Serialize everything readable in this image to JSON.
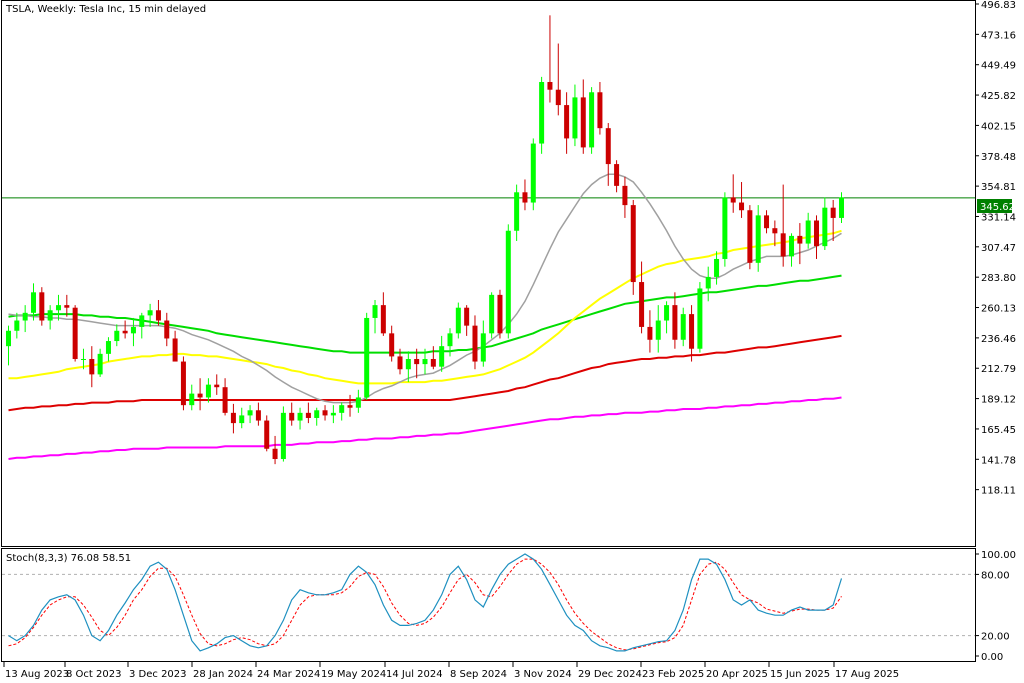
{
  "chart_header": {
    "title": "TSLA, Weekly:  Tesla Inc, 15 min delayed"
  },
  "stoch_header": {
    "label": "Stoch(8,3,3) 76.08 58.51"
  },
  "current_price": "345.62",
  "colors": {
    "bull": "#00ff00",
    "bear": "#cc0000",
    "ma_fast": "#a0a0a0",
    "ma_yellow": "#ffff00",
    "ma_green": "#00dd00",
    "ma_red": "#dd0000",
    "ma_magenta": "#ff00ff",
    "price_line": "#008000",
    "stoch_main": "#1e90c0",
    "stoch_signal": "#ff0000"
  },
  "chart_data": {
    "type": "candlestick",
    "title": "TSLA, Weekly:  Tesla Inc, 15 min delayed",
    "y_ticks": [
      "496.83",
      "473.16",
      "449.49",
      "425.82",
      "402.15",
      "378.48",
      "354.81",
      "331.14",
      "307.47",
      "283.80",
      "260.13",
      "236.46",
      "212.79",
      "189.12",
      "165.45",
      "141.78",
      "118.11"
    ],
    "ylim": [
      94.44,
      496.83
    ],
    "x_labels": [
      "13 Aug 2023",
      "8 Oct 2023",
      "3 Dec 2023",
      "28 Jan 2024",
      "24 Mar 2024",
      "19 May 2024",
      "14 Jul 2024",
      "8 Sep 2024",
      "3 Nov 2024",
      "29 Dec 2024",
      "23 Feb 2025",
      "20 Apr 2025",
      "15 Jun 2025",
      "17 Aug 2025"
    ],
    "horizontal_line": 345.62,
    "candles": [
      {
        "o": 230,
        "h": 246,
        "l": 215,
        "c": 242
      },
      {
        "o": 242,
        "h": 256,
        "l": 236,
        "c": 250
      },
      {
        "o": 250,
        "h": 262,
        "l": 241,
        "c": 256
      },
      {
        "o": 256,
        "h": 279,
        "l": 250,
        "c": 272
      },
      {
        "o": 272,
        "h": 276,
        "l": 246,
        "c": 250
      },
      {
        "o": 250,
        "h": 262,
        "l": 243,
        "c": 258
      },
      {
        "o": 258,
        "h": 270,
        "l": 250,
        "c": 262
      },
      {
        "o": 262,
        "h": 270,
        "l": 253,
        "c": 260
      },
      {
        "o": 260,
        "h": 262,
        "l": 218,
        "c": 220
      },
      {
        "o": 220,
        "h": 228,
        "l": 212,
        "c": 220
      },
      {
        "o": 220,
        "h": 230,
        "l": 198,
        "c": 208
      },
      {
        "o": 208,
        "h": 228,
        "l": 206,
        "c": 224
      },
      {
        "o": 224,
        "h": 237,
        "l": 218,
        "c": 234
      },
      {
        "o": 234,
        "h": 247,
        "l": 230,
        "c": 242
      },
      {
        "o": 242,
        "h": 250,
        "l": 236,
        "c": 240
      },
      {
        "o": 240,
        "h": 252,
        "l": 230,
        "c": 245
      },
      {
        "o": 245,
        "h": 256,
        "l": 236,
        "c": 254
      },
      {
        "o": 254,
        "h": 263,
        "l": 245,
        "c": 258
      },
      {
        "o": 258,
        "h": 266,
        "l": 246,
        "c": 250
      },
      {
        "o": 250,
        "h": 256,
        "l": 230,
        "c": 236
      },
      {
        "o": 236,
        "h": 242,
        "l": 222,
        "c": 218
      },
      {
        "o": 218,
        "h": 222,
        "l": 180,
        "c": 184
      },
      {
        "o": 184,
        "h": 200,
        "l": 180,
        "c": 193
      },
      {
        "o": 193,
        "h": 205,
        "l": 180,
        "c": 190
      },
      {
        "o": 190,
        "h": 205,
        "l": 186,
        "c": 200
      },
      {
        "o": 200,
        "h": 208,
        "l": 192,
        "c": 198
      },
      {
        "o": 198,
        "h": 205,
        "l": 176,
        "c": 178
      },
      {
        "o": 178,
        "h": 185,
        "l": 162,
        "c": 170
      },
      {
        "o": 170,
        "h": 182,
        "l": 166,
        "c": 176
      },
      {
        "o": 176,
        "h": 184,
        "l": 170,
        "c": 180
      },
      {
        "o": 180,
        "h": 186,
        "l": 168,
        "c": 172
      },
      {
        "o": 172,
        "h": 176,
        "l": 148,
        "c": 150
      },
      {
        "o": 150,
        "h": 160,
        "l": 138,
        "c": 142
      },
      {
        "o": 142,
        "h": 183,
        "l": 140,
        "c": 178
      },
      {
        "o": 178,
        "h": 186,
        "l": 168,
        "c": 172
      },
      {
        "o": 172,
        "h": 182,
        "l": 165,
        "c": 178
      },
      {
        "o": 178,
        "h": 186,
        "l": 170,
        "c": 174
      },
      {
        "o": 174,
        "h": 182,
        "l": 168,
        "c": 180
      },
      {
        "o": 180,
        "h": 184,
        "l": 172,
        "c": 176
      },
      {
        "o": 176,
        "h": 184,
        "l": 170,
        "c": 178
      },
      {
        "o": 178,
        "h": 186,
        "l": 172,
        "c": 184
      },
      {
        "o": 184,
        "h": 192,
        "l": 175,
        "c": 182
      },
      {
        "o": 182,
        "h": 196,
        "l": 178,
        "c": 190
      },
      {
        "o": 190,
        "h": 256,
        "l": 188,
        "c": 252
      },
      {
        "o": 252,
        "h": 266,
        "l": 240,
        "c": 262
      },
      {
        "o": 262,
        "h": 272,
        "l": 238,
        "c": 240
      },
      {
        "o": 240,
        "h": 246,
        "l": 218,
        "c": 222
      },
      {
        "o": 222,
        "h": 228,
        "l": 208,
        "c": 212
      },
      {
        "o": 212,
        "h": 226,
        "l": 202,
        "c": 220
      },
      {
        "o": 220,
        "h": 228,
        "l": 205,
        "c": 216
      },
      {
        "o": 216,
        "h": 228,
        "l": 208,
        "c": 220
      },
      {
        "o": 220,
        "h": 230,
        "l": 212,
        "c": 214
      },
      {
        "o": 214,
        "h": 238,
        "l": 210,
        "c": 230
      },
      {
        "o": 230,
        "h": 244,
        "l": 222,
        "c": 240
      },
      {
        "o": 240,
        "h": 264,
        "l": 236,
        "c": 260
      },
      {
        "o": 260,
        "h": 262,
        "l": 238,
        "c": 246
      },
      {
        "o": 246,
        "h": 254,
        "l": 212,
        "c": 218
      },
      {
        "o": 218,
        "h": 250,
        "l": 214,
        "c": 240
      },
      {
        "o": 240,
        "h": 272,
        "l": 236,
        "c": 270
      },
      {
        "o": 270,
        "h": 274,
        "l": 236,
        "c": 240
      },
      {
        "o": 240,
        "h": 325,
        "l": 236,
        "c": 320
      },
      {
        "o": 320,
        "h": 356,
        "l": 312,
        "c": 350
      },
      {
        "o": 350,
        "h": 360,
        "l": 336,
        "c": 342
      },
      {
        "o": 342,
        "h": 392,
        "l": 336,
        "c": 388
      },
      {
        "o": 388,
        "h": 440,
        "l": 380,
        "c": 436
      },
      {
        "o": 436,
        "h": 488,
        "l": 420,
        "c": 430
      },
      {
        "o": 430,
        "h": 466,
        "l": 410,
        "c": 418
      },
      {
        "o": 418,
        "h": 428,
        "l": 380,
        "c": 392
      },
      {
        "o": 392,
        "h": 434,
        "l": 386,
        "c": 424
      },
      {
        "o": 424,
        "h": 438,
        "l": 380,
        "c": 385
      },
      {
        "o": 385,
        "h": 432,
        "l": 380,
        "c": 428
      },
      {
        "o": 428,
        "h": 436,
        "l": 395,
        "c": 400
      },
      {
        "o": 400,
        "h": 404,
        "l": 355,
        "c": 372
      },
      {
        "o": 372,
        "h": 375,
        "l": 350,
        "c": 355
      },
      {
        "o": 355,
        "h": 362,
        "l": 330,
        "c": 340
      },
      {
        "o": 340,
        "h": 344,
        "l": 270,
        "c": 280
      },
      {
        "o": 280,
        "h": 296,
        "l": 240,
        "c": 245
      },
      {
        "o": 245,
        "h": 258,
        "l": 225,
        "c": 235
      },
      {
        "o": 235,
        "h": 262,
        "l": 225,
        "c": 250
      },
      {
        "o": 250,
        "h": 265,
        "l": 240,
        "c": 262
      },
      {
        "o": 262,
        "h": 272,
        "l": 228,
        "c": 235
      },
      {
        "o": 235,
        "h": 260,
        "l": 230,
        "c": 255
      },
      {
        "o": 255,
        "h": 262,
        "l": 218,
        "c": 228
      },
      {
        "o": 228,
        "h": 280,
        "l": 225,
        "c": 275
      },
      {
        "o": 275,
        "h": 292,
        "l": 265,
        "c": 284
      },
      {
        "o": 284,
        "h": 304,
        "l": 278,
        "c": 298
      },
      {
        "o": 298,
        "h": 350,
        "l": 292,
        "c": 346
      },
      {
        "o": 346,
        "h": 364,
        "l": 334,
        "c": 342
      },
      {
        "o": 342,
        "h": 358,
        "l": 330,
        "c": 336
      },
      {
        "o": 336,
        "h": 340,
        "l": 290,
        "c": 295
      },
      {
        "o": 295,
        "h": 340,
        "l": 288,
        "c": 332
      },
      {
        "o": 332,
        "h": 336,
        "l": 318,
        "c": 322
      },
      {
        "o": 322,
        "h": 328,
        "l": 308,
        "c": 318
      },
      {
        "o": 318,
        "h": 356,
        "l": 292,
        "c": 300
      },
      {
        "o": 300,
        "h": 318,
        "l": 292,
        "c": 316
      },
      {
        "o": 316,
        "h": 326,
        "l": 294,
        "c": 310
      },
      {
        "o": 310,
        "h": 334,
        "l": 306,
        "c": 328
      },
      {
        "o": 328,
        "h": 332,
        "l": 298,
        "c": 308
      },
      {
        "o": 308,
        "h": 346,
        "l": 305,
        "c": 338
      },
      {
        "o": 338,
        "h": 344,
        "l": 312,
        "c": 330
      },
      {
        "o": 330,
        "h": 350,
        "l": 326,
        "c": 346
      }
    ],
    "ma_fast": [
      255,
      254,
      254,
      253,
      253,
      252,
      252,
      251,
      251,
      250,
      249,
      248,
      247,
      246,
      246,
      246,
      246,
      246,
      246,
      245,
      244,
      242,
      239,
      237,
      235,
      232,
      229,
      226,
      222,
      219,
      215,
      211,
      206,
      202,
      198,
      195,
      192,
      189,
      187,
      186,
      186,
      186,
      187,
      190,
      194,
      197,
      199,
      202,
      205,
      207,
      208,
      209,
      212,
      215,
      219,
      223,
      226,
      230,
      235,
      240,
      247,
      255,
      265,
      278,
      292,
      306,
      319,
      329,
      339,
      349,
      356,
      361,
      364,
      364,
      362,
      358,
      350,
      341,
      331,
      320,
      308,
      298,
      290,
      285,
      283,
      283,
      286,
      290,
      293,
      296,
      298,
      300,
      300,
      300,
      301,
      303,
      305,
      308,
      311,
      314,
      318
    ],
    "ma_yellow": [
      205,
      205,
      206,
      207,
      208,
      209,
      210,
      212,
      213,
      214,
      215,
      216,
      218,
      219,
      220,
      221,
      222,
      222,
      223,
      223,
      224,
      224,
      223,
      223,
      222,
      222,
      221,
      220,
      219,
      218,
      217,
      216,
      214,
      213,
      211,
      210,
      208,
      207,
      205,
      204,
      203,
      202,
      201,
      201,
      201,
      201,
      201,
      202,
      202,
      202,
      202,
      203,
      203,
      204,
      205,
      206,
      207,
      208,
      210,
      212,
      215,
      218,
      221,
      225,
      230,
      235,
      240,
      246,
      252,
      257,
      262,
      267,
      271,
      275,
      279,
      283,
      286,
      289,
      292,
      294,
      295,
      297,
      298,
      299,
      300,
      302,
      303,
      305,
      306,
      307,
      308,
      309,
      310,
      311,
      312,
      314,
      315,
      316,
      317,
      318,
      320
    ],
    "ma_green": [
      253,
      254,
      254,
      254,
      255,
      255,
      255,
      255,
      255,
      254,
      254,
      253,
      253,
      252,
      252,
      251,
      250,
      249,
      248,
      247,
      246,
      245,
      244,
      243,
      242,
      240,
      239,
      238,
      237,
      236,
      235,
      234,
      233,
      232,
      231,
      230,
      229,
      228,
      227,
      226,
      226,
      225,
      225,
      225,
      225,
      225,
      225,
      225,
      225,
      225,
      225,
      226,
      226,
      226,
      227,
      227,
      228,
      229,
      230,
      232,
      234,
      236,
      238,
      240,
      243,
      245,
      247,
      249,
      251,
      253,
      255,
      257,
      259,
      261,
      263,
      264,
      265,
      266,
      267,
      268,
      268,
      269,
      270,
      271,
      272,
      272,
      273,
      274,
      275,
      276,
      277,
      277,
      278,
      279,
      280,
      281,
      281,
      282,
      283,
      284,
      285
    ],
    "ma_red": [
      180,
      181,
      182,
      182,
      183,
      183,
      184,
      184,
      185,
      185,
      186,
      186,
      186,
      187,
      187,
      187,
      188,
      188,
      188,
      188,
      188,
      188,
      188,
      188,
      188,
      188,
      188,
      188,
      188,
      188,
      188,
      188,
      188,
      188,
      188,
      188,
      188,
      188,
      188,
      188,
      188,
      188,
      188,
      188,
      188,
      188,
      188,
      188,
      188,
      188,
      188,
      188,
      188,
      188,
      189,
      190,
      191,
      192,
      193,
      194,
      195,
      197,
      198,
      200,
      202,
      204,
      205,
      207,
      209,
      211,
      213,
      214,
      216,
      217,
      218,
      219,
      220,
      220,
      221,
      221,
      222,
      222,
      223,
      223,
      224,
      225,
      225,
      226,
      227,
      228,
      229,
      229,
      230,
      231,
      232,
      233,
      234,
      235,
      236,
      237,
      238
    ],
    "ma_magenta": [
      142,
      143,
      143,
      144,
      144,
      145,
      145,
      146,
      146,
      147,
      147,
      148,
      148,
      149,
      149,
      150,
      150,
      150,
      150,
      151,
      151,
      151,
      151,
      151,
      151,
      151,
      152,
      152,
      152,
      152,
      152,
      152,
      153,
      153,
      153,
      154,
      154,
      155,
      155,
      155,
      156,
      156,
      157,
      157,
      158,
      158,
      158,
      159,
      159,
      160,
      160,
      161,
      161,
      162,
      162,
      163,
      164,
      165,
      166,
      167,
      168,
      169,
      170,
      171,
      172,
      173,
      173,
      174,
      175,
      175,
      176,
      176,
      177,
      177,
      178,
      178,
      178,
      179,
      179,
      180,
      180,
      181,
      181,
      181,
      182,
      182,
      183,
      183,
      184,
      184,
      185,
      185,
      186,
      186,
      187,
      187,
      188,
      188,
      189,
      189,
      190
    ],
    "stoch": {
      "ylim": [
        0,
        100
      ],
      "y_ticks": [
        "100.00",
        "80.00",
        "20.00",
        "0.00"
      ],
      "levels": [
        80,
        20
      ],
      "main": [
        20,
        15,
        20,
        30,
        45,
        55,
        58,
        60,
        55,
        40,
        20,
        15,
        25,
        40,
        52,
        65,
        75,
        88,
        92,
        85,
        65,
        40,
        15,
        5,
        8,
        12,
        18,
        20,
        15,
        10,
        8,
        10,
        20,
        35,
        55,
        65,
        62,
        60,
        60,
        62,
        65,
        80,
        88,
        82,
        70,
        50,
        35,
        30,
        30,
        32,
        35,
        45,
        60,
        80,
        88,
        75,
        55,
        48,
        65,
        80,
        90,
        95,
        100,
        95,
        85,
        70,
        55,
        40,
        30,
        25,
        15,
        10,
        8,
        5,
        5,
        8,
        10,
        12,
        14,
        15,
        25,
        45,
        75,
        95,
        95,
        90,
        75,
        55,
        50,
        55,
        45,
        42,
        40,
        40,
        45,
        48,
        45,
        45,
        45,
        50,
        76.08
      ],
      "signal": [
        10,
        12,
        18,
        28,
        40,
        50,
        55,
        58,
        58,
        50,
        38,
        25,
        20,
        28,
        40,
        55,
        65,
        78,
        86,
        86,
        78,
        60,
        40,
        22,
        12,
        10,
        12,
        16,
        18,
        16,
        12,
        10,
        12,
        20,
        35,
        50,
        58,
        60,
        60,
        60,
        62,
        68,
        78,
        82,
        80,
        68,
        52,
        40,
        32,
        30,
        32,
        38,
        48,
        62,
        75,
        80,
        72,
        60,
        58,
        68,
        80,
        90,
        95,
        95,
        90,
        82,
        70,
        55,
        42,
        32,
        24,
        18,
        12,
        8,
        6,
        7,
        9,
        11,
        13,
        14,
        18,
        30,
        55,
        80,
        90,
        92,
        85,
        72,
        60,
        55,
        52,
        46,
        44,
        42,
        44,
        46,
        46,
        45,
        45,
        47,
        58.51
      ]
    }
  }
}
